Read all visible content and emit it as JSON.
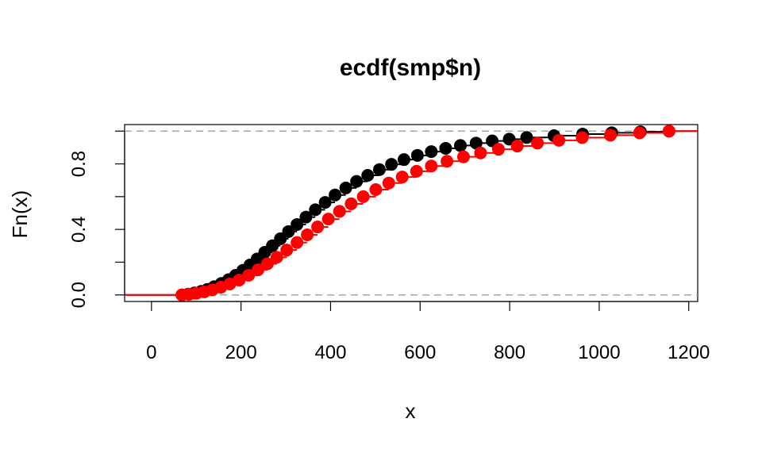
{
  "chart_data": {
    "type": "scatter",
    "title": "ecdf(smp$n)",
    "xlabel": "x",
    "ylabel": "Fn(x)",
    "xlim": [
      -60,
      1220
    ],
    "ylim": [
      -0.04,
      1.04
    ],
    "x_ticks": [
      0,
      200,
      400,
      600,
      800,
      1000,
      1200
    ],
    "x_tick_labels": [
      "0",
      "200",
      "400",
      "600",
      "800",
      "1000",
      "1200"
    ],
    "y_ticks": [
      0.0,
      0.2,
      0.4,
      0.6,
      0.8,
      1.0
    ],
    "y_tick_labels": [
      "0.0",
      "",
      "0.4",
      "",
      "0.8",
      ""
    ],
    "reference_lines": [
      0,
      1
    ],
    "reference_line_color": "#a6a6a6",
    "series": [
      {
        "color": "#000000",
        "x": [
          68,
          82,
          96,
          111,
          125,
          140,
          156,
          172,
          188,
          204,
          220,
          236,
          253,
          270,
          288,
          306,
          325,
          345,
          366,
          388,
          410,
          434,
          458,
          483,
          509,
          536,
          564,
          594,
          625,
          657,
          690,
          725,
          761,
          799,
          838,
          899,
          963,
          1028,
          1092,
          1156
        ],
        "y": [
          0.0,
          0.005,
          0.012,
          0.022,
          0.034,
          0.05,
          0.07,
          0.093,
          0.12,
          0.15,
          0.183,
          0.22,
          0.26,
          0.3,
          0.343,
          0.387,
          0.43,
          0.475,
          0.52,
          0.565,
          0.61,
          0.653,
          0.693,
          0.73,
          0.765,
          0.797,
          0.826,
          0.852,
          0.875,
          0.895,
          0.912,
          0.927,
          0.94,
          0.951,
          0.961,
          0.972,
          0.982,
          0.99,
          0.996,
          1.0
        ]
      },
      {
        "color": "#ff0000",
        "x": [
          68,
          84,
          100,
          118,
          136,
          155,
          175,
          196,
          217,
          238,
          259,
          280,
          302,
          325,
          348,
          371,
          395,
          420,
          446,
          473,
          501,
          530,
          560,
          592,
          625,
          660,
          697,
          735,
          775,
          817,
          862,
          910,
          962,
          1025,
          1090,
          1156
        ],
        "y": [
          0.0,
          0.004,
          0.01,
          0.019,
          0.031,
          0.047,
          0.067,
          0.091,
          0.12,
          0.153,
          0.19,
          0.23,
          0.274,
          0.32,
          0.367,
          0.415,
          0.463,
          0.51,
          0.556,
          0.6,
          0.643,
          0.683,
          0.72,
          0.755,
          0.787,
          0.816,
          0.843,
          0.867,
          0.889,
          0.909,
          0.927,
          0.944,
          0.96,
          0.975,
          0.989,
          1.0
        ]
      }
    ]
  }
}
